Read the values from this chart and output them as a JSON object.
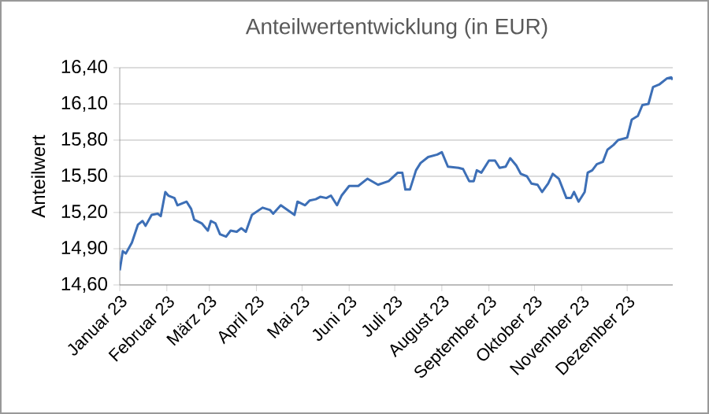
{
  "chart_data": {
    "type": "line",
    "title": "Anteilwertentwicklung  (in EUR)",
    "ylabel": "Anteilwert",
    "x": [
      "2023-01-01",
      "2023-01-03",
      "2023-01-05",
      "2023-01-09",
      "2023-01-13",
      "2023-01-16",
      "2023-01-18",
      "2023-01-22",
      "2023-01-26",
      "2023-01-28",
      "2023-01-31",
      "2023-02-02",
      "2023-02-06",
      "2023-02-08",
      "2023-02-14",
      "2023-02-17",
      "2023-02-19",
      "2023-02-24",
      "2023-02-28",
      "2023-03-02",
      "2023-03-05",
      "2023-03-08",
      "2023-03-12",
      "2023-03-15",
      "2023-03-19",
      "2023-03-22",
      "2023-03-25",
      "2023-03-29",
      "2023-04-05",
      "2023-04-10",
      "2023-04-12",
      "2023-04-17",
      "2023-04-26",
      "2023-04-28",
      "2023-05-03",
      "2023-05-06",
      "2023-05-10",
      "2023-05-13",
      "2023-05-17",
      "2023-05-20",
      "2023-05-24",
      "2023-05-27",
      "2023-06-01",
      "2023-06-07",
      "2023-06-13",
      "2023-06-20",
      "2023-06-27",
      "2023-07-03",
      "2023-07-06",
      "2023-07-08",
      "2023-07-11",
      "2023-07-15",
      "2023-07-18",
      "2023-07-23",
      "2023-07-29",
      "2023-08-01",
      "2023-08-05",
      "2023-08-12",
      "2023-08-15",
      "2023-08-19",
      "2023-08-22",
      "2023-08-24",
      "2023-08-27",
      "2023-09-01",
      "2023-09-05",
      "2023-09-08",
      "2023-09-12",
      "2023-09-15",
      "2023-09-19",
      "2023-09-22",
      "2023-09-26",
      "2023-09-29",
      "2023-10-03",
      "2023-10-06",
      "2023-10-10",
      "2023-10-13",
      "2023-10-17",
      "2023-10-22",
      "2023-10-25",
      "2023-10-27",
      "2023-10-30",
      "2023-11-03",
      "2023-11-05",
      "2023-11-08",
      "2023-11-11",
      "2023-11-15",
      "2023-11-18",
      "2023-11-22",
      "2023-11-25",
      "2023-12-01",
      "2023-12-04",
      "2023-12-08",
      "2023-12-11",
      "2023-12-15",
      "2023-12-18",
      "2023-12-22",
      "2023-12-27",
      "2023-12-30",
      "2023-12-31"
    ],
    "series": [
      {
        "color": "#3d6fb6",
        "values": [
          14.72,
          14.88,
          14.86,
          14.95,
          15.1,
          15.13,
          15.09,
          15.18,
          15.19,
          15.17,
          15.37,
          15.34,
          15.32,
          15.26,
          15.29,
          15.23,
          15.14,
          15.11,
          15.05,
          15.13,
          15.11,
          15.02,
          15.0,
          15.05,
          15.04,
          15.07,
          15.04,
          15.18,
          15.24,
          15.22,
          15.19,
          15.26,
          15.18,
          15.29,
          15.26,
          15.3,
          15.31,
          15.33,
          15.32,
          15.34,
          15.26,
          15.34,
          15.42,
          15.42,
          15.48,
          15.43,
          15.46,
          15.53,
          15.53,
          15.39,
          15.39,
          15.55,
          15.61,
          15.66,
          15.68,
          15.7,
          15.58,
          15.57,
          15.56,
          15.46,
          15.46,
          15.55,
          15.53,
          15.63,
          15.63,
          15.57,
          15.58,
          15.65,
          15.59,
          15.52,
          15.5,
          15.44,
          15.43,
          15.37,
          15.44,
          15.52,
          15.48,
          15.32,
          15.32,
          15.37,
          15.29,
          15.37,
          15.53,
          15.55,
          15.6,
          15.62,
          15.72,
          15.76,
          15.8,
          15.82,
          15.97,
          16.0,
          16.09,
          16.1,
          16.24,
          16.26,
          16.31,
          16.32,
          16.3
        ]
      }
    ],
    "xlim": [
      "2023-01-01",
      "2023-12-31"
    ],
    "xticks": [
      {
        "value": "2023-01-01",
        "label": "Januar 23"
      },
      {
        "value": "2023-02-01",
        "label": "Februar 23"
      },
      {
        "value": "2023-03-01",
        "label": "März 23"
      },
      {
        "value": "2023-04-01",
        "label": "April 23"
      },
      {
        "value": "2023-05-01",
        "label": "Mai 23"
      },
      {
        "value": "2023-06-01",
        "label": "Juni 23"
      },
      {
        "value": "2023-07-01",
        "label": "Juli 23"
      },
      {
        "value": "2023-08-01",
        "label": "August 23"
      },
      {
        "value": "2023-09-01",
        "label": "September 23"
      },
      {
        "value": "2023-10-01",
        "label": "Oktober 23"
      },
      {
        "value": "2023-11-01",
        "label": "November 23"
      },
      {
        "value": "2023-12-01",
        "label": "Dezember 23"
      }
    ],
    "ylim": [
      14.6,
      16.4
    ],
    "yticks": [
      {
        "value": 14.6,
        "label": "14,60"
      },
      {
        "value": 14.9,
        "label": "14,90"
      },
      {
        "value": 15.2,
        "label": "15,20"
      },
      {
        "value": 15.5,
        "label": "15,50"
      },
      {
        "value": 15.8,
        "label": "15,80"
      },
      {
        "value": 16.1,
        "label": "16,10"
      },
      {
        "value": 16.4,
        "label": "16,40"
      }
    ],
    "grid": "y"
  }
}
